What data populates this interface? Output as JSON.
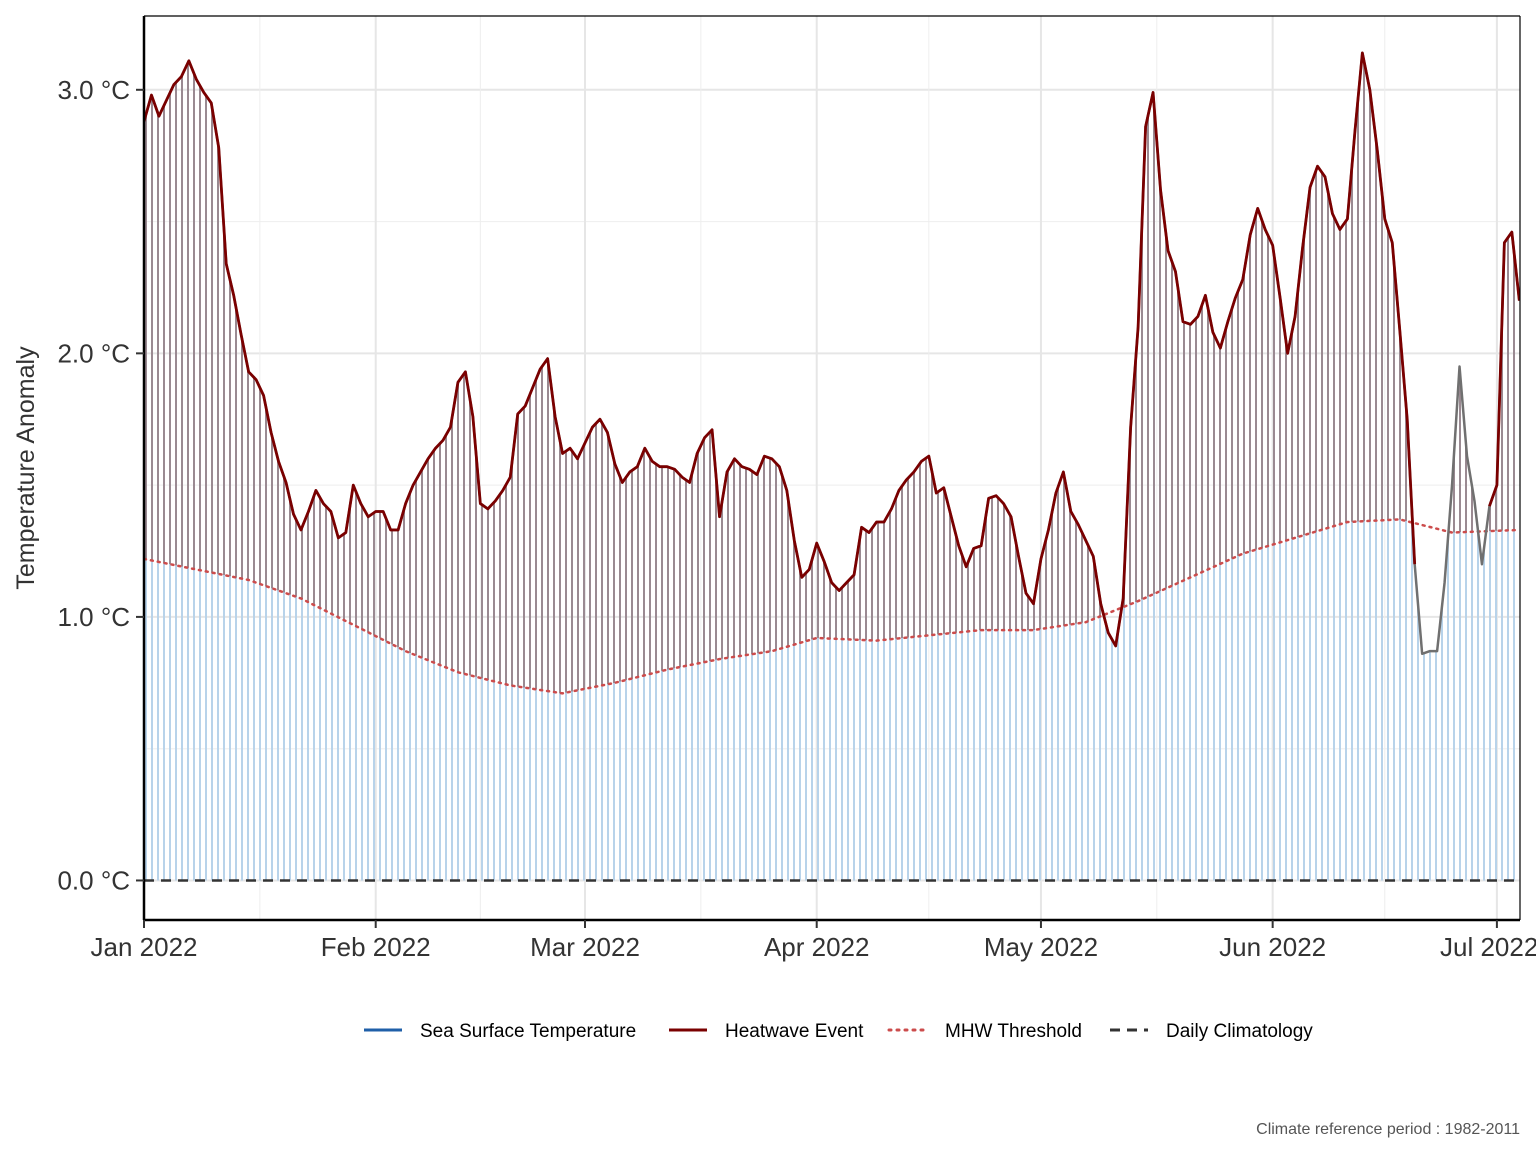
{
  "chart_data": {
    "type": "line",
    "title": "",
    "xlabel": "",
    "ylabel": "Temperature Anomaly",
    "caption": "Climate reference period :  1982-2011",
    "x_range": [
      "2022-01-01",
      "2022-07-03"
    ],
    "ylim": [
      -0.15,
      3.28
    ],
    "x_ticks": [
      {
        "date": "2022-01-01",
        "label": "Jan 2022"
      },
      {
        "date": "2022-02-01",
        "label": "Feb 2022"
      },
      {
        "date": "2022-03-01",
        "label": "Mar 2022"
      },
      {
        "date": "2022-04-01",
        "label": "Apr 2022"
      },
      {
        "date": "2022-05-01",
        "label": "May 2022"
      },
      {
        "date": "2022-06-01",
        "label": "Jun 2022"
      },
      {
        "date": "2022-07-01",
        "label": "Jul 2022"
      }
    ],
    "y_ticks": [
      {
        "value": 0.0,
        "label": "0.0 °C"
      },
      {
        "value": 1.0,
        "label": "1.0 °C"
      },
      {
        "value": 2.0,
        "label": "2.0 °C"
      },
      {
        "value": 3.0,
        "label": "3.0 °C"
      }
    ],
    "grid": true,
    "legend_position": "bottom",
    "colors": {
      "sst": "#1f5fa8",
      "heatwave": "#7a0000",
      "threshold": "#cc4c4c",
      "climatology": "#333333",
      "below_fill": "#b8d3ea",
      "heatwave_fill": "#9a8a92",
      "non_event_line": "#707070"
    },
    "series": [
      {
        "name": "Sea Surface Temperature",
        "key": "sst",
        "points": [
          [
            "2022-01-01",
            2.88
          ],
          [
            "2022-01-02",
            2.98
          ],
          [
            "2022-01-03",
            2.9
          ],
          [
            "2022-01-04",
            2.96
          ],
          [
            "2022-01-05",
            3.02
          ],
          [
            "2022-01-06",
            3.05
          ],
          [
            "2022-01-07",
            3.11
          ],
          [
            "2022-01-08",
            3.04
          ],
          [
            "2022-01-09",
            2.99
          ],
          [
            "2022-01-10",
            2.95
          ],
          [
            "2022-01-11",
            2.78
          ],
          [
            "2022-01-12",
            2.34
          ],
          [
            "2022-01-13",
            2.22
          ],
          [
            "2022-01-14",
            2.07
          ],
          [
            "2022-01-15",
            1.93
          ],
          [
            "2022-01-16",
            1.9
          ],
          [
            "2022-01-17",
            1.84
          ],
          [
            "2022-01-18",
            1.7
          ],
          [
            "2022-01-19",
            1.59
          ],
          [
            "2022-01-20",
            1.51
          ],
          [
            "2022-01-21",
            1.39
          ],
          [
            "2022-01-22",
            1.33
          ],
          [
            "2022-01-23",
            1.4
          ],
          [
            "2022-01-24",
            1.48
          ],
          [
            "2022-01-25",
            1.43
          ],
          [
            "2022-01-26",
            1.4
          ],
          [
            "2022-01-27",
            1.3
          ],
          [
            "2022-01-28",
            1.32
          ],
          [
            "2022-01-29",
            1.5
          ],
          [
            "2022-01-30",
            1.43
          ],
          [
            "2022-01-31",
            1.38
          ],
          [
            "2022-02-01",
            1.4
          ],
          [
            "2022-02-02",
            1.4
          ],
          [
            "2022-02-03",
            1.33
          ],
          [
            "2022-02-04",
            1.33
          ],
          [
            "2022-02-05",
            1.43
          ],
          [
            "2022-02-06",
            1.5
          ],
          [
            "2022-02-07",
            1.55
          ],
          [
            "2022-02-08",
            1.6
          ],
          [
            "2022-02-09",
            1.64
          ],
          [
            "2022-02-10",
            1.67
          ],
          [
            "2022-02-11",
            1.72
          ],
          [
            "2022-02-12",
            1.89
          ],
          [
            "2022-02-13",
            1.93
          ],
          [
            "2022-02-14",
            1.76
          ],
          [
            "2022-02-15",
            1.43
          ],
          [
            "2022-02-16",
            1.41
          ],
          [
            "2022-02-17",
            1.44
          ],
          [
            "2022-02-18",
            1.48
          ],
          [
            "2022-02-19",
            1.53
          ],
          [
            "2022-02-20",
            1.77
          ],
          [
            "2022-02-21",
            1.8
          ],
          [
            "2022-02-22",
            1.87
          ],
          [
            "2022-02-23",
            1.94
          ],
          [
            "2022-02-24",
            1.98
          ],
          [
            "2022-02-25",
            1.76
          ],
          [
            "2022-02-26",
            1.62
          ],
          [
            "2022-02-27",
            1.64
          ],
          [
            "2022-02-28",
            1.6
          ],
          [
            "2022-03-01",
            1.66
          ],
          [
            "2022-03-02",
            1.72
          ],
          [
            "2022-03-03",
            1.75
          ],
          [
            "2022-03-04",
            1.7
          ],
          [
            "2022-03-05",
            1.58
          ],
          [
            "2022-03-06",
            1.51
          ],
          [
            "2022-03-07",
            1.55
          ],
          [
            "2022-03-08",
            1.57
          ],
          [
            "2022-03-09",
            1.64
          ],
          [
            "2022-03-10",
            1.59
          ],
          [
            "2022-03-11",
            1.57
          ],
          [
            "2022-03-12",
            1.57
          ],
          [
            "2022-03-13",
            1.56
          ],
          [
            "2022-03-14",
            1.53
          ],
          [
            "2022-03-15",
            1.51
          ],
          [
            "2022-03-16",
            1.62
          ],
          [
            "2022-03-17",
            1.68
          ],
          [
            "2022-03-18",
            1.71
          ],
          [
            "2022-03-19",
            1.38
          ],
          [
            "2022-03-20",
            1.55
          ],
          [
            "2022-03-21",
            1.6
          ],
          [
            "2022-03-22",
            1.57
          ],
          [
            "2022-03-23",
            1.56
          ],
          [
            "2022-03-24",
            1.54
          ],
          [
            "2022-03-25",
            1.61
          ],
          [
            "2022-03-26",
            1.6
          ],
          [
            "2022-03-27",
            1.57
          ],
          [
            "2022-03-28",
            1.48
          ],
          [
            "2022-03-29",
            1.29
          ],
          [
            "2022-03-30",
            1.15
          ],
          [
            "2022-03-31",
            1.18
          ],
          [
            "2022-04-01",
            1.28
          ],
          [
            "2022-04-02",
            1.21
          ],
          [
            "2022-04-03",
            1.13
          ],
          [
            "2022-04-04",
            1.1
          ],
          [
            "2022-04-05",
            1.13
          ],
          [
            "2022-04-06",
            1.16
          ],
          [
            "2022-04-07",
            1.34
          ],
          [
            "2022-04-08",
            1.32
          ],
          [
            "2022-04-09",
            1.36
          ],
          [
            "2022-04-10",
            1.36
          ],
          [
            "2022-04-11",
            1.41
          ],
          [
            "2022-04-12",
            1.48
          ],
          [
            "2022-04-13",
            1.52
          ],
          [
            "2022-04-14",
            1.55
          ],
          [
            "2022-04-15",
            1.59
          ],
          [
            "2022-04-16",
            1.61
          ],
          [
            "2022-04-17",
            1.47
          ],
          [
            "2022-04-18",
            1.49
          ],
          [
            "2022-04-19",
            1.38
          ],
          [
            "2022-04-20",
            1.27
          ],
          [
            "2022-04-21",
            1.19
          ],
          [
            "2022-04-22",
            1.26
          ],
          [
            "2022-04-23",
            1.27
          ],
          [
            "2022-04-24",
            1.45
          ],
          [
            "2022-04-25",
            1.46
          ],
          [
            "2022-04-26",
            1.43
          ],
          [
            "2022-04-27",
            1.38
          ],
          [
            "2022-04-28",
            1.23
          ],
          [
            "2022-04-29",
            1.09
          ],
          [
            "2022-04-30",
            1.05
          ],
          [
            "2022-05-01",
            1.22
          ],
          [
            "2022-05-02",
            1.33
          ],
          [
            "2022-05-03",
            1.47
          ],
          [
            "2022-05-04",
            1.55
          ],
          [
            "2022-05-05",
            1.4
          ],
          [
            "2022-05-06",
            1.35
          ],
          [
            "2022-05-07",
            1.29
          ],
          [
            "2022-05-08",
            1.23
          ],
          [
            "2022-05-09",
            1.05
          ],
          [
            "2022-05-10",
            0.94
          ],
          [
            "2022-05-11",
            0.89
          ],
          [
            "2022-05-12",
            1.07
          ],
          [
            "2022-05-13",
            1.72
          ],
          [
            "2022-05-14",
            2.1
          ],
          [
            "2022-05-15",
            2.86
          ],
          [
            "2022-05-16",
            2.99
          ],
          [
            "2022-05-17",
            2.62
          ],
          [
            "2022-05-18",
            2.39
          ],
          [
            "2022-05-19",
            2.31
          ],
          [
            "2022-05-20",
            2.12
          ],
          [
            "2022-05-21",
            2.11
          ],
          [
            "2022-05-22",
            2.14
          ],
          [
            "2022-05-23",
            2.22
          ],
          [
            "2022-05-24",
            2.08
          ],
          [
            "2022-05-25",
            2.02
          ],
          [
            "2022-05-26",
            2.12
          ],
          [
            "2022-05-27",
            2.21
          ],
          [
            "2022-05-28",
            2.28
          ],
          [
            "2022-05-29",
            2.45
          ],
          [
            "2022-05-30",
            2.55
          ],
          [
            "2022-05-31",
            2.47
          ],
          [
            "2022-06-01",
            2.41
          ],
          [
            "2022-06-02",
            2.21
          ],
          [
            "2022-06-03",
            2.0
          ],
          [
            "2022-06-04",
            2.14
          ],
          [
            "2022-06-05",
            2.4
          ],
          [
            "2022-06-06",
            2.63
          ],
          [
            "2022-06-07",
            2.71
          ],
          [
            "2022-06-08",
            2.67
          ],
          [
            "2022-06-09",
            2.53
          ],
          [
            "2022-06-10",
            2.47
          ],
          [
            "2022-06-11",
            2.51
          ],
          [
            "2022-06-12",
            2.84
          ],
          [
            "2022-06-13",
            3.14
          ],
          [
            "2022-06-14",
            3.0
          ],
          [
            "2022-06-15",
            2.77
          ],
          [
            "2022-06-16",
            2.51
          ],
          [
            "2022-06-17",
            2.42
          ],
          [
            "2022-06-18",
            2.09
          ],
          [
            "2022-06-19",
            1.75
          ],
          [
            "2022-06-20",
            1.2
          ],
          [
            "2022-06-21",
            0.86
          ],
          [
            "2022-06-22",
            0.87
          ],
          [
            "2022-06-23",
            0.87
          ],
          [
            "2022-06-24",
            1.13
          ],
          [
            "2022-06-25",
            1.5
          ],
          [
            "2022-06-26",
            1.95
          ],
          [
            "2022-06-27",
            1.61
          ],
          [
            "2022-06-28",
            1.44
          ],
          [
            "2022-06-29",
            1.2
          ],
          [
            "2022-06-30",
            1.42
          ],
          [
            "2022-07-01",
            1.5
          ],
          [
            "2022-07-02",
            2.42
          ],
          [
            "2022-07-03",
            2.46
          ],
          [
            "2022-07-04",
            2.2
          ]
        ]
      },
      {
        "name": "MHW Threshold",
        "key": "threshold",
        "points": [
          [
            "2022-01-01",
            1.22
          ],
          [
            "2022-01-08",
            1.18
          ],
          [
            "2022-01-15",
            1.14
          ],
          [
            "2022-01-22",
            1.07
          ],
          [
            "2022-01-29",
            0.97
          ],
          [
            "2022-02-05",
            0.87
          ],
          [
            "2022-02-12",
            0.79
          ],
          [
            "2022-02-19",
            0.74
          ],
          [
            "2022-02-26",
            0.71
          ],
          [
            "2022-03-05",
            0.75
          ],
          [
            "2022-03-12",
            0.8
          ],
          [
            "2022-03-19",
            0.84
          ],
          [
            "2022-03-26",
            0.87
          ],
          [
            "2022-04-01",
            0.92
          ],
          [
            "2022-04-09",
            0.91
          ],
          [
            "2022-04-16",
            0.93
          ],
          [
            "2022-04-23",
            0.95
          ],
          [
            "2022-04-30",
            0.95
          ],
          [
            "2022-05-07",
            0.98
          ],
          [
            "2022-05-14",
            1.06
          ],
          [
            "2022-05-21",
            1.15
          ],
          [
            "2022-05-28",
            1.24
          ],
          [
            "2022-06-04",
            1.3
          ],
          [
            "2022-06-11",
            1.36
          ],
          [
            "2022-06-18",
            1.37
          ],
          [
            "2022-06-25",
            1.32
          ],
          [
            "2022-07-04",
            1.33
          ]
        ]
      },
      {
        "name": "Daily Climatology",
        "key": "climatology",
        "points": [
          [
            "2022-01-01",
            0.0
          ],
          [
            "2022-07-04",
            0.0
          ]
        ]
      }
    ],
    "heatwave_events": [
      {
        "start": "2022-01-01",
        "end": "2022-06-20"
      },
      {
        "start": "2022-06-30",
        "end": "2022-07-04"
      }
    ],
    "legend": [
      {
        "label": "Sea Surface Temperature",
        "key": "sst",
        "style": "solid"
      },
      {
        "label": "Heatwave Event",
        "key": "heatwave",
        "style": "solid"
      },
      {
        "label": "MHW Threshold",
        "key": "threshold",
        "style": "dotted"
      },
      {
        "label": "Daily Climatology",
        "key": "climatology",
        "style": "dashed"
      }
    ]
  }
}
